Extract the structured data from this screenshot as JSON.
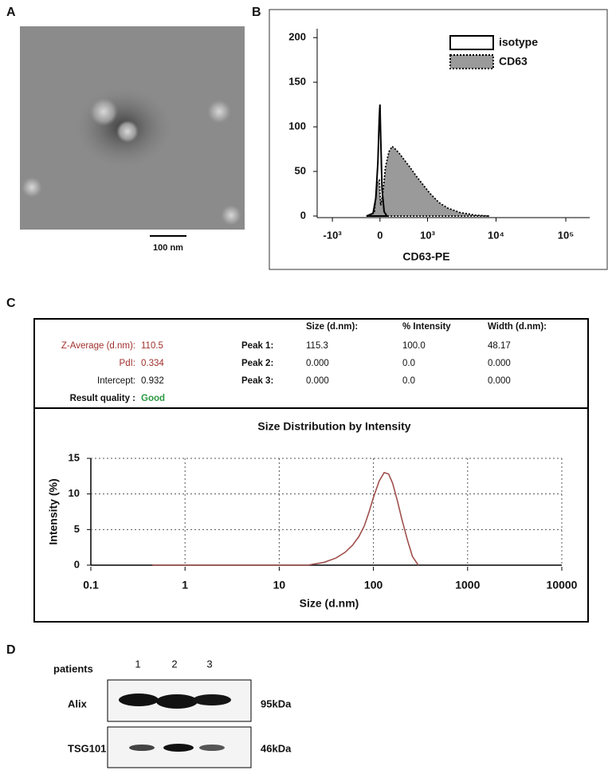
{
  "panel_labels": [
    "A",
    "B",
    "C",
    "D"
  ],
  "tem": {
    "scale_bar": "100 nm"
  },
  "chart_data": [
    {
      "type": "area",
      "xlabel": "CD63-PE",
      "xscale": "biexponential",
      "xlim": [
        -1700,
        220000
      ],
      "xticks": [
        {
          "value": -1000,
          "label": "-10³"
        },
        0,
        {
          "value": 1000,
          "label": "10³"
        },
        {
          "value": 10000,
          "label": "10⁴"
        },
        {
          "value": 100000,
          "label": "10⁵"
        }
      ],
      "ylim": [
        0,
        210
      ],
      "yticks": [
        0,
        50,
        100,
        150,
        200
      ],
      "legend": "upper right",
      "series": [
        {
          "name": "isotype",
          "color": "#000000",
          "fill": "none",
          "linestyle": "solid",
          "x": [
            -200,
            -100,
            -60,
            -30,
            -10,
            0,
            10,
            30,
            60,
            100
          ],
          "values": [
            0,
            3,
            20,
            60,
            110,
            125,
            90,
            30,
            5,
            0
          ]
        },
        {
          "name": "CD63",
          "color": "#000000",
          "fill": "#9a9a9a",
          "linestyle": "dotted",
          "x": [
            -150,
            -80,
            -40,
            -10,
            10,
            40,
            80,
            130,
            180,
            230,
            300,
            400,
            500,
            650,
            850,
            1100,
            1500,
            2000,
            3000,
            5000,
            8000
          ],
          "values": [
            0,
            5,
            38,
            40,
            12,
            25,
            55,
            72,
            78,
            75,
            70,
            62,
            55,
            45,
            35,
            25,
            15,
            9,
            4,
            1,
            0
          ]
        }
      ]
    },
    {
      "type": "line",
      "title": "Size Distribution by Intensity",
      "xlabel": "Size (d.nm)",
      "ylabel": "Intensity (%)",
      "xscale": "log",
      "xlim": [
        0.1,
        10000
      ],
      "xticks": [
        0.1,
        1,
        10,
        100,
        1000,
        10000
      ],
      "ylim": [
        0,
        15
      ],
      "yticks": [
        0,
        5,
        10,
        15
      ],
      "grid": true,
      "series": [
        {
          "color": "#a0504c",
          "x": [
            0.45,
            1,
            10,
            20,
            30,
            40,
            50,
            60,
            70,
            80,
            90,
            100,
            115,
            130,
            145,
            160,
            180,
            200,
            230,
            260,
            300
          ],
          "values": [
            0,
            0,
            0,
            0,
            0.4,
            1,
            1.8,
            2.8,
            4,
            5.5,
            7.5,
            9.5,
            11.8,
            13,
            12.8,
            11.5,
            9,
            6.5,
            3.5,
            1.2,
            0
          ]
        }
      ]
    }
  ],
  "dls_table": {
    "header": [
      "Size (d.nm):",
      "% Intensity",
      "Width (d.nm):"
    ],
    "summary": [
      [
        "Z-Average (d.nm):",
        "110.5"
      ],
      [
        "PdI:",
        "0.334"
      ],
      [
        "Intercept:",
        "0.932"
      ],
      [
        "Result quality :",
        "Good"
      ]
    ],
    "peaks": [
      [
        "Peak 1:",
        "115.3",
        "100.0",
        "48.17"
      ],
      [
        "Peak 2:",
        "0.000",
        "0.0",
        "0.000"
      ],
      [
        "Peak 3:",
        "0.000",
        "0.0",
        "0.000"
      ]
    ]
  },
  "western_blot": {
    "header": "patients",
    "lanes": [
      "1",
      "2",
      "3"
    ],
    "rows": [
      [
        "Alix",
        "95kDa"
      ],
      [
        "TSG101",
        "46kDa"
      ]
    ]
  }
}
